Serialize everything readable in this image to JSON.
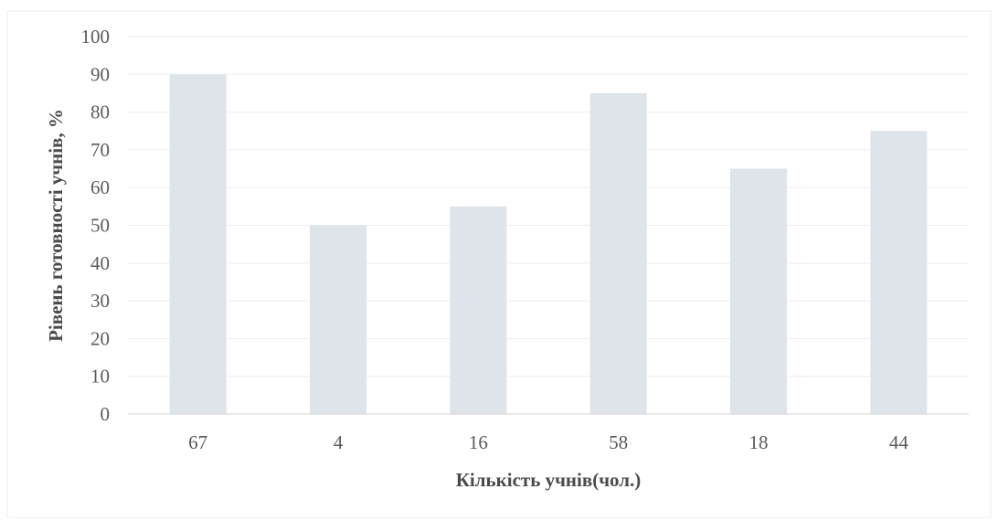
{
  "chart_data": {
    "type": "bar",
    "title": "",
    "xlabel": "Кількість учнів(чол.)",
    "ylabel": "Рівень готовності учнів, %",
    "categories": [
      "67",
      "4",
      "16",
      "58",
      "18",
      "44"
    ],
    "series": [
      {
        "values": [
          90,
          50,
          55,
          85,
          65,
          75
        ],
        "color": "#dfe3ea"
      }
    ],
    "ylim": [
      0,
      100
    ],
    "yticks": [
      0,
      10,
      20,
      30,
      40,
      50,
      60,
      70,
      80,
      90,
      100
    ],
    "grid": true,
    "legend": "none"
  }
}
